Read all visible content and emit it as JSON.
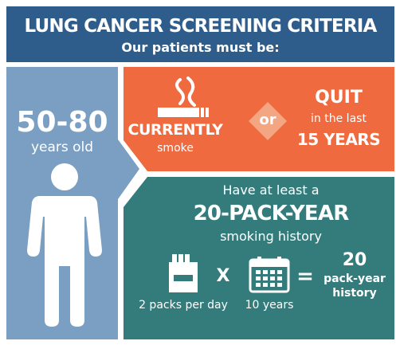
{
  "header": {
    "title": "LUNG CANCER SCREENING CRITERIA",
    "subtitle": "Our patients must be:"
  },
  "age_panel": {
    "range": "50-80",
    "unit": "years old",
    "icon": "person-icon"
  },
  "smoking_status": {
    "current_label": "CURRENTLY",
    "current_sub": "smoke",
    "connector": "or",
    "quit_label": "QUIT",
    "quit_sub": "in the last",
    "quit_years": "15 YEARS",
    "icon": "cigarette-icon"
  },
  "pack_year": {
    "intro": "Have at least a",
    "headline": "20-PACK-YEAR",
    "tail": "smoking history",
    "packs_label": "2 packs per day",
    "multiply_sign": "X",
    "years_label": "10 years",
    "equals_sign": "=",
    "result_number": "20",
    "result_line1": "pack-year",
    "result_line2": "history",
    "icons": [
      "cigarette-pack-icon",
      "calendar-icon"
    ]
  },
  "colors": {
    "header_blue": "#2e5d8c",
    "age_blue": "#7b9fc3",
    "orange": "#ef6a3e",
    "teal": "#347c7c",
    "white": "#ffffff"
  }
}
